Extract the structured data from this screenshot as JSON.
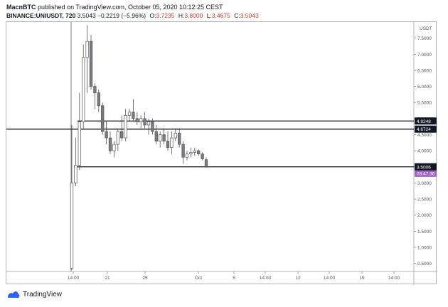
{
  "header": {
    "author": "MacnBTC",
    "published_text": "published on TradingView.com, October 05, 2020 10:12:25 CEST",
    "symbol": "BINANCE:UNIUSDT, 720",
    "last": "3.5043",
    "change": "−0.2219 (−5.96%)",
    "o_label": "O:",
    "o_value": "3.7235",
    "h_label": "H:",
    "h_value": "3.8000",
    "l_label": "L:",
    "l_value": "3.4675",
    "c_label": "C:",
    "c_value": "3.5043"
  },
  "footer": {
    "brand": "TradingView"
  },
  "chart_data": {
    "type": "candlestick",
    "y_axis_label": "USDT",
    "ylim": [
      0.25,
      8.0
    ],
    "y_ticks": [
      "7.5000",
      "7.0000",
      "6.5000",
      "6.0000",
      "5.5000",
      "5.0000",
      "4.5000",
      "4.0000",
      "3.5000",
      "3.0000",
      "2.5000",
      "2.0000",
      "1.5000",
      "1.0000",
      "0.5000"
    ],
    "x_ticks": [
      "14:00",
      "21",
      "25",
      "Oct",
      "5",
      "14:00",
      "12",
      "14:00",
      "19",
      "14:00"
    ],
    "price_labels": [
      {
        "text": "4.9248",
        "value": 4.9248,
        "style": "dark"
      },
      {
        "text": "4.6724",
        "value": 4.6724,
        "style": "dark"
      },
      {
        "text": "3.5043",
        "value": 3.5043,
        "style": "purple"
      },
      {
        "text": "03:47:36",
        "value": 3.3,
        "style": "purple"
      },
      {
        "text": "3.5006",
        "value": 3.5006,
        "style": "dark"
      }
    ],
    "horizontal_lines": [
      4.9248,
      4.6724,
      3.5006
    ],
    "candles": [
      {
        "o": 0.35,
        "h": 4.8,
        "l": 0.3,
        "c": 3.0
      },
      {
        "o": 3.0,
        "h": 4.4,
        "l": 2.9,
        "c": 3.55
      },
      {
        "o": 3.55,
        "h": 5.8,
        "l": 3.4,
        "c": 4.9
      },
      {
        "o": 4.9,
        "h": 7.3,
        "l": 4.7,
        "c": 6.9
      },
      {
        "o": 6.9,
        "h": 7.9,
        "l": 5.8,
        "c": 7.4
      },
      {
        "o": 7.4,
        "h": 7.6,
        "l": 5.9,
        "c": 6.0
      },
      {
        "o": 6.0,
        "h": 6.1,
        "l": 5.3,
        "c": 5.8
      },
      {
        "o": 5.8,
        "h": 5.9,
        "l": 5.2,
        "c": 5.4
      },
      {
        "o": 5.4,
        "h": 5.5,
        "l": 4.5,
        "c": 4.6
      },
      {
        "o": 4.6,
        "h": 4.9,
        "l": 4.2,
        "c": 4.4
      },
      {
        "o": 4.4,
        "h": 4.6,
        "l": 3.9,
        "c": 4.0
      },
      {
        "o": 4.0,
        "h": 4.3,
        "l": 3.8,
        "c": 4.2
      },
      {
        "o": 4.2,
        "h": 4.7,
        "l": 4.0,
        "c": 4.6
      },
      {
        "o": 4.6,
        "h": 5.1,
        "l": 4.3,
        "c": 4.4
      },
      {
        "o": 4.4,
        "h": 5.3,
        "l": 4.3,
        "c": 5.1
      },
      {
        "o": 5.1,
        "h": 5.3,
        "l": 4.9,
        "c": 5.2
      },
      {
        "o": 5.2,
        "h": 5.6,
        "l": 4.9,
        "c": 5.0
      },
      {
        "o": 5.0,
        "h": 5.2,
        "l": 4.8,
        "c": 4.9
      },
      {
        "o": 4.9,
        "h": 5.1,
        "l": 4.7,
        "c": 5.0
      },
      {
        "o": 5.0,
        "h": 5.2,
        "l": 4.7,
        "c": 4.8
      },
      {
        "o": 4.8,
        "h": 5.0,
        "l": 4.5,
        "c": 4.9
      },
      {
        "o": 4.9,
        "h": 5.0,
        "l": 4.5,
        "c": 4.6
      },
      {
        "o": 4.6,
        "h": 4.8,
        "l": 4.2,
        "c": 4.3
      },
      {
        "o": 4.3,
        "h": 4.6,
        "l": 4.1,
        "c": 4.5
      },
      {
        "o": 4.5,
        "h": 4.7,
        "l": 4.2,
        "c": 4.3
      },
      {
        "o": 4.3,
        "h": 4.6,
        "l": 4.0,
        "c": 4.1
      },
      {
        "o": 4.1,
        "h": 4.6,
        "l": 3.9,
        "c": 4.4
      },
      {
        "o": 4.4,
        "h": 4.7,
        "l": 4.3,
        "c": 4.55
      },
      {
        "o": 4.55,
        "h": 4.7,
        "l": 4.1,
        "c": 4.2
      },
      {
        "o": 4.2,
        "h": 4.3,
        "l": 3.6,
        "c": 3.8
      },
      {
        "o": 3.8,
        "h": 4.0,
        "l": 3.7,
        "c": 3.9
      },
      {
        "o": 3.9,
        "h": 4.1,
        "l": 3.8,
        "c": 3.95
      },
      {
        "o": 3.95,
        "h": 4.1,
        "l": 3.85,
        "c": 4.0
      },
      {
        "o": 4.0,
        "h": 4.05,
        "l": 3.85,
        "c": 3.9
      },
      {
        "o": 3.9,
        "h": 3.95,
        "l": 3.7,
        "c": 3.75
      },
      {
        "o": 3.7235,
        "h": 3.8,
        "l": 3.4675,
        "c": 3.5043
      }
    ]
  }
}
